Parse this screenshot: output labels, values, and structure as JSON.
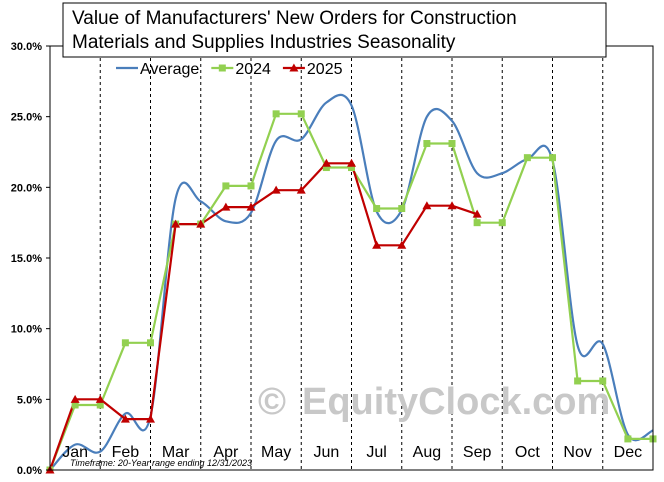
{
  "chart_data": {
    "type": "line",
    "title_line1": "Value of Manufacturers'  New Orders for Construction",
    "title_line2": "Materials and Supplies Industries Seasonality",
    "xlabel": "",
    "ylabel": "",
    "ylim": [
      0,
      30
    ],
    "y_ticks": [
      "0.0%",
      "5.0%",
      "10.0%",
      "15.0%",
      "20.0%",
      "25.0%",
      "30.0%"
    ],
    "categories": [
      "Jan",
      "Feb",
      "Mar",
      "Apr",
      "May",
      "Jun",
      "Jul",
      "Aug",
      "Sep",
      "Oct",
      "Nov",
      "Dec"
    ],
    "grid": "vertical dashed month dividers",
    "legend_position": "top-left",
    "footnote": "Timeframe: 20-Year range ending 12/31/2023",
    "watermark": "EquityClock.com",
    "watermark_symbol": "©",
    "series": [
      {
        "name": "Average",
        "color": "#4a7ebb",
        "marker": "none",
        "smooth": true,
        "x": [
          0,
          0.5,
          1,
          1.5,
          2,
          2.5,
          3,
          3.5,
          4,
          4.5,
          5,
          5.5,
          6,
          6.5,
          7,
          7.5,
          8,
          8.5,
          9,
          9.5,
          10,
          10.5,
          11,
          11.5,
          12
        ],
        "values": [
          0.0,
          1.8,
          1.3,
          4.0,
          3.8,
          19.2,
          19.0,
          17.6,
          18.2,
          23.3,
          23.4,
          26.0,
          25.8,
          18.3,
          18.4,
          25.0,
          24.7,
          21.0,
          21.0,
          22.0,
          21.9,
          8.8,
          8.9,
          2.5,
          2.8
        ]
      },
      {
        "name": "2024",
        "color": "#92d050",
        "marker": "square",
        "x": [
          0,
          0.5,
          1,
          1.5,
          2,
          2.5,
          3,
          3.5,
          4,
          4.5,
          5,
          5.5,
          6,
          6.5,
          7,
          7.5,
          8,
          8.5,
          9,
          9.5,
          10,
          10.5,
          11,
          11.5,
          12
        ],
        "values": [
          0.0,
          4.6,
          4.6,
          9.0,
          9.0,
          17.4,
          17.4,
          20.1,
          20.1,
          25.2,
          25.2,
          21.4,
          21.4,
          18.5,
          18.5,
          23.1,
          23.1,
          17.5,
          17.5,
          22.1,
          22.1,
          6.3,
          6.3,
          2.2,
          2.2
        ]
      },
      {
        "name": "2025",
        "color": "#c00000",
        "marker": "triangle",
        "x": [
          0,
          0.5,
          1,
          1.5,
          2,
          2.5,
          3,
          3.5,
          4,
          4.5,
          5,
          5.5,
          6,
          6.5,
          7,
          7.5,
          8,
          8.5
        ],
        "values": [
          0.0,
          5.0,
          5.0,
          3.6,
          3.6,
          17.4,
          17.4,
          18.6,
          18.6,
          19.8,
          19.8,
          21.7,
          21.7,
          15.9,
          15.9,
          18.7,
          18.7,
          18.1
        ]
      }
    ]
  }
}
